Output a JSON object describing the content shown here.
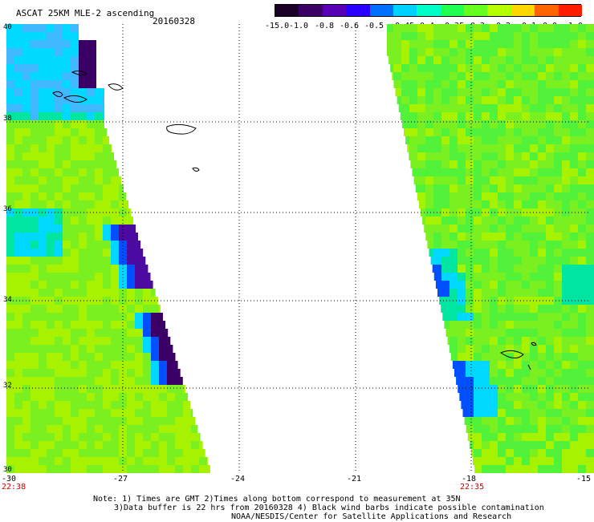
{
  "header": {
    "title": "ASCAT 25KM MLE-2 ascending",
    "date": "20160328"
  },
  "colorbar": {
    "tick_labels": [
      "-15.0",
      "-1.0",
      "-0.8",
      "-0.6",
      "-0.5",
      "-0.45",
      "-0.4",
      "-0.35",
      "-0.3",
      "-0.2",
      "-0.1",
      "0.0",
      "1.0"
    ],
    "colors": [
      "#1a0026",
      "#3a0066",
      "#5a00b4",
      "#2800ff",
      "#0070ff",
      "#00d2ff",
      "#00ffc8",
      "#20ff50",
      "#64ff20",
      "#b4ff00",
      "#ffd700",
      "#ff6400",
      "#ff1e00"
    ]
  },
  "axes": {
    "x_ticks": [
      "-30",
      "-27",
      "-24",
      "-21",
      "-18",
      "-15"
    ],
    "y_ticks": [
      "40",
      "38",
      "36",
      "34",
      "32",
      "30"
    ],
    "time_left": "22:38",
    "time_right": "22:35"
  },
  "field_colors": {
    "green": "#7af020",
    "lime": "#a6f200",
    "light_green": "#52f23a",
    "teal": "#00e6a0",
    "cyan": "#00d8ff",
    "light_blue": "#40b8ff",
    "blue": "#0050ff",
    "deep_blue": "#2000ff",
    "purple": "#4b0aa0",
    "dark_purple": "#3a0066"
  },
  "notes": {
    "line1": "Note: 1) Times are GMT 2)Times along bottom correspond to measurement at 35N",
    "line2": "3)Data buffer is 22 hrs from 20160328 4) Black wind barbs indicate possible contamination",
    "line3": "NOAA/NESDIS/Center for Satellite Applications and Research"
  }
}
